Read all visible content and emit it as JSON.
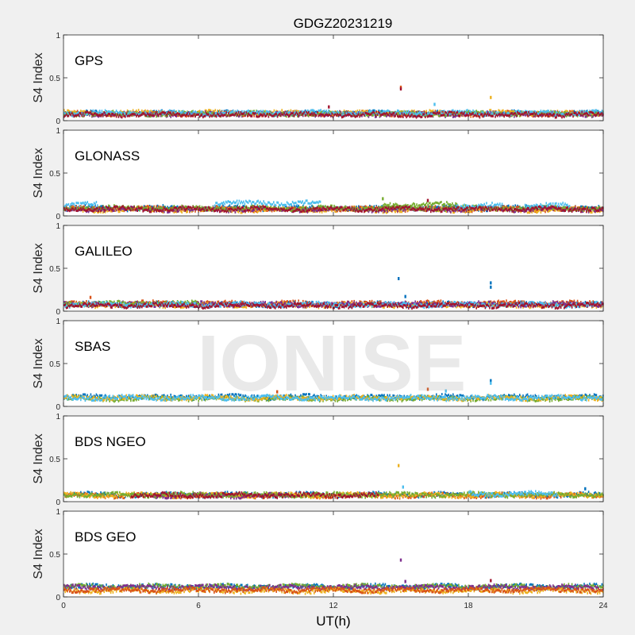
{
  "chart_data": {
    "type": "scatter",
    "title": "GDGZ20231219",
    "xlabel": "UT(h)",
    "ylabel": "S4 Index",
    "xlim": [
      0,
      24
    ],
    "ylim": [
      0,
      1
    ],
    "x_ticks": [
      0,
      6,
      12,
      18,
      24
    ],
    "y_ticks": [
      0,
      0.5,
      1
    ],
    "x_tick_labels": [
      "0",
      "6",
      "12",
      "18",
      "24"
    ],
    "y_tick_labels": [
      "0",
      "0.5",
      "1"
    ],
    "watermark": "IONISE",
    "series_colors": [
      "#0072bd",
      "#d95319",
      "#edb120",
      "#7e2f8e",
      "#77ac30",
      "#4dbeee",
      "#a2142f"
    ],
    "panels": [
      {
        "name": "GPS",
        "bands": [
          {
            "color": "#0072bd",
            "x": [
              0,
              24
            ],
            "base": 0.085
          },
          {
            "color": "#d95319",
            "x": [
              0,
              24
            ],
            "base": 0.08
          },
          {
            "color": "#edb120",
            "x": [
              0,
              24
            ],
            "base": 0.09
          },
          {
            "color": "#7e2f8e",
            "x": [
              0,
              24
            ],
            "base": 0.075
          },
          {
            "color": "#77ac30",
            "x": [
              0,
              24
            ],
            "base": 0.08
          },
          {
            "color": "#4dbeee",
            "x": [
              0,
              24
            ],
            "base": 0.09
          },
          {
            "color": "#a2142f",
            "x": [
              0,
              24
            ],
            "base": 0.07
          }
        ],
        "spikes": [
          {
            "x": 15.0,
            "y": 0.39,
            "color": "#d95319"
          },
          {
            "x": 15.0,
            "y": 0.37,
            "color": "#a2142f"
          },
          {
            "x": 19.0,
            "y": 0.27,
            "color": "#edb120"
          },
          {
            "x": 16.5,
            "y": 0.19,
            "color": "#4dbeee"
          },
          {
            "x": 11.8,
            "y": 0.16,
            "color": "#a2142f"
          }
        ]
      },
      {
        "name": "GLONASS",
        "bands": [
          {
            "color": "#0072bd",
            "x": [
              0,
              24
            ],
            "base": 0.09
          },
          {
            "color": "#d95319",
            "x": [
              0,
              24
            ],
            "base": 0.08
          },
          {
            "color": "#edb120",
            "x": [
              0,
              24
            ],
            "base": 0.07
          },
          {
            "color": "#7e2f8e",
            "x": [
              0,
              24
            ],
            "base": 0.075
          },
          {
            "color": "#77ac30",
            "x": [
              0,
              24
            ],
            "base": 0.09
          },
          {
            "color": "#4dbeee",
            "x": [
              6.7,
              11.4
            ],
            "base": 0.15
          },
          {
            "color": "#4dbeee",
            "x": [
              0,
              1.5
            ],
            "base": 0.13
          },
          {
            "color": "#77ac30",
            "x": [
              14.2,
              17.5
            ],
            "base": 0.13
          },
          {
            "color": "#4dbeee",
            "x": [
              17.5,
              19.5
            ],
            "base": 0.12
          },
          {
            "color": "#4dbeee",
            "x": [
              20.5,
              22.5
            ],
            "base": 0.12
          },
          {
            "color": "#a2142f",
            "x": [
              0,
              24
            ],
            "base": 0.08
          }
        ],
        "spikes": [
          {
            "x": 14.2,
            "y": 0.2,
            "color": "#77ac30"
          },
          {
            "x": 16.2,
            "y": 0.18,
            "color": "#a2142f"
          }
        ]
      },
      {
        "name": "GALILEO",
        "bands": [
          {
            "color": "#0072bd",
            "x": [
              0,
              24
            ],
            "base": 0.08
          },
          {
            "color": "#d95319",
            "x": [
              0,
              24
            ],
            "base": 0.09
          },
          {
            "color": "#edb120",
            "x": [
              0,
              24
            ],
            "base": 0.07
          },
          {
            "color": "#7e2f8e",
            "x": [
              0,
              24
            ],
            "base": 0.08
          },
          {
            "color": "#77ac30",
            "x": [
              0,
              6
            ],
            "base": 0.09
          },
          {
            "color": "#4dbeee",
            "x": [
              0,
              24
            ],
            "base": 0.075
          },
          {
            "color": "#a2142f",
            "x": [
              0,
              24
            ],
            "base": 0.065
          }
        ],
        "spikes": [
          {
            "x": 14.9,
            "y": 0.38,
            "color": "#0072bd"
          },
          {
            "x": 19.0,
            "y": 0.33,
            "color": "#0072bd"
          },
          {
            "x": 19.0,
            "y": 0.28,
            "color": "#0072bd"
          },
          {
            "x": 15.2,
            "y": 0.17,
            "color": "#0072bd"
          },
          {
            "x": 1.2,
            "y": 0.16,
            "color": "#d95319"
          }
        ]
      },
      {
        "name": "SBAS",
        "bands": [
          {
            "color": "#0072bd",
            "x": [
              0,
              24
            ],
            "base": 0.11
          },
          {
            "color": "#77ac30",
            "x": [
              0,
              24
            ],
            "base": 0.09
          },
          {
            "color": "#edb120",
            "x": [
              0,
              24
            ],
            "base": 0.1
          },
          {
            "color": "#4dbeee",
            "x": [
              0,
              24
            ],
            "base": 0.1
          }
        ],
        "spikes": [
          {
            "x": 19.0,
            "y": 0.3,
            "color": "#0072bd"
          },
          {
            "x": 19.0,
            "y": 0.27,
            "color": "#4dbeee"
          },
          {
            "x": 16.2,
            "y": 0.2,
            "color": "#d95319"
          },
          {
            "x": 9.5,
            "y": 0.17,
            "color": "#d95319"
          },
          {
            "x": 17.0,
            "y": 0.18,
            "color": "#4dbeee"
          }
        ]
      },
      {
        "name": "BDS NGEO",
        "bands": [
          {
            "color": "#0072bd",
            "x": [
              0,
              24
            ],
            "base": 0.08
          },
          {
            "color": "#d95319",
            "x": [
              0,
              24
            ],
            "base": 0.07
          },
          {
            "color": "#edb120",
            "x": [
              0,
              24
            ],
            "base": 0.075
          },
          {
            "color": "#7e2f8e",
            "x": [
              4,
              10
            ],
            "base": 0.07
          },
          {
            "color": "#77ac30",
            "x": [
              0,
              24
            ],
            "base": 0.08
          },
          {
            "color": "#4dbeee",
            "x": [
              18,
              22
            ],
            "base": 0.09
          },
          {
            "color": "#a2142f",
            "x": [
              3,
              14
            ],
            "base": 0.075
          }
        ],
        "spikes": [
          {
            "x": 14.9,
            "y": 0.42,
            "color": "#edb120"
          },
          {
            "x": 15.1,
            "y": 0.17,
            "color": "#4dbeee"
          },
          {
            "x": 23.2,
            "y": 0.15,
            "color": "#0072bd"
          }
        ]
      },
      {
        "name": "BDS GEO",
        "bands": [
          {
            "color": "#0072bd",
            "x": [
              0,
              24
            ],
            "base": 0.12
          },
          {
            "color": "#77ac30",
            "x": [
              0,
              24
            ],
            "base": 0.12
          },
          {
            "color": "#7e2f8e",
            "x": [
              0,
              24
            ],
            "base": 0.11
          },
          {
            "color": "#edb120",
            "x": [
              0,
              24
            ],
            "base": 0.07
          },
          {
            "color": "#d95319",
            "x": [
              0,
              24
            ],
            "base": 0.08
          }
        ],
        "spikes": [
          {
            "x": 15.0,
            "y": 0.43,
            "color": "#7e2f8e"
          },
          {
            "x": 19.0,
            "y": 0.19,
            "color": "#a2142f"
          },
          {
            "x": 15.2,
            "y": 0.18,
            "color": "#7e2f8e"
          }
        ]
      }
    ]
  }
}
